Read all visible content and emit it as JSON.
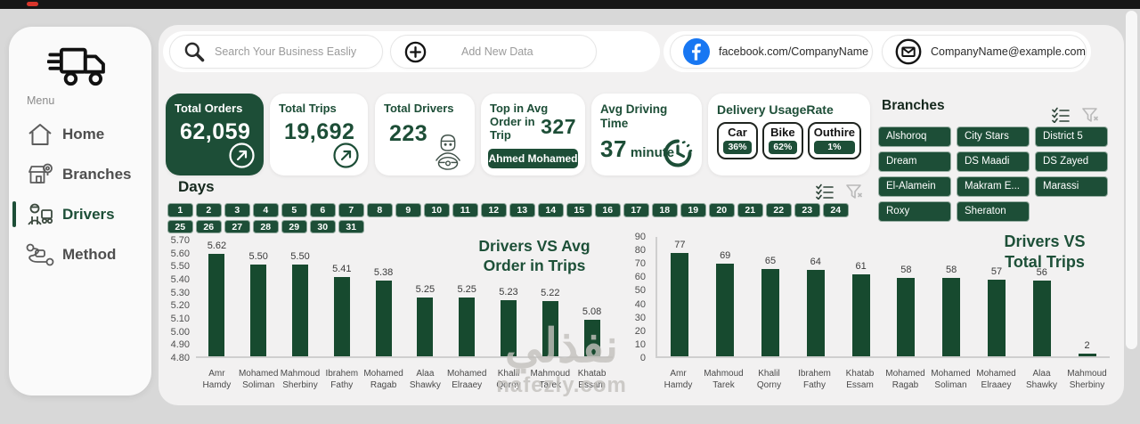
{
  "colors": {
    "accent": "#1d4e37",
    "bar_green": "#174a2f",
    "facebook_blue": "#1877F2",
    "background": "#d8d8d8"
  },
  "sidebar": {
    "menu_label": "Menu",
    "items": [
      {
        "label": "Home",
        "active": false
      },
      {
        "label": "Branches",
        "active": false
      },
      {
        "label": "Drivers",
        "active": true
      },
      {
        "label": "Method",
        "active": false
      }
    ]
  },
  "topbar": {
    "search_placeholder": "Search Your Business Easliy",
    "add_new_label": "Add New Data",
    "facebook_text": "facebook.com/CompanyName",
    "email_text": "CompanyName@example.com"
  },
  "kpis": {
    "total_orders": {
      "label": "Total Orders",
      "value": "62,059"
    },
    "total_trips": {
      "label": "Total Trips",
      "value": "19,692"
    },
    "total_drivers": {
      "label": "Total Drivers",
      "value": "223"
    },
    "top_avg_order": {
      "label": "Top in Avg Order in Trip",
      "value": "327",
      "badge": "Ahmed Mohamed"
    },
    "avg_driving_time": {
      "label": "Avg Driving Time",
      "value": "37",
      "unit": "minute"
    },
    "delivery_usage": {
      "label": "Delivery UsageRate",
      "items": [
        {
          "name": "Car",
          "pct": "36%"
        },
        {
          "name": "Bike",
          "pct": "62%"
        },
        {
          "name": "Outhire",
          "pct": "1%"
        }
      ]
    }
  },
  "branches": {
    "title": "Branches",
    "items": [
      "Alshoroq",
      "City Stars",
      "District 5",
      "Dream",
      "DS Maadi",
      "DS Zayed",
      "El-Alamein",
      "Makram E...",
      "Marassi",
      "Roxy",
      "Sheraton"
    ]
  },
  "days": {
    "title": "Days",
    "values": [
      "1",
      "2",
      "3",
      "4",
      "5",
      "6",
      "7",
      "8",
      "9",
      "10",
      "11",
      "12",
      "13",
      "14",
      "15",
      "16",
      "17",
      "18",
      "19",
      "20",
      "21",
      "22",
      "23",
      "24",
      "25",
      "26",
      "27",
      "28",
      "29",
      "30",
      "31"
    ]
  },
  "chart_data": [
    {
      "type": "bar",
      "title": "Drivers VS Avg Order in Trips",
      "title_lines": [
        "Drivers VS Avg",
        "Order in Trips"
      ],
      "categories": [
        "Amr Hamdy",
        "Mohamed Soliman",
        "Mahmoud Sherbiny",
        "Ibrahem Fathy",
        "Mohamed Ragab",
        "Alaa Shawky",
        "Mohamed Elraaey",
        "Khalil Qorny",
        "Mahmoud Tarek",
        "Khatab Essam"
      ],
      "values": [
        5.62,
        5.5,
        5.5,
        5.41,
        5.38,
        5.25,
        5.25,
        5.23,
        5.22,
        5.08
      ],
      "value_labels": [
        "5.62",
        "5.50",
        "5.50",
        "5.41",
        "5.38",
        "5.25",
        "5.25",
        "5.23",
        "5.22",
        "5.08"
      ],
      "xlabel": "",
      "ylabel": "",
      "ylim": [
        4.8,
        5.7
      ],
      "yticks": [
        "5.70",
        "5.60",
        "5.50",
        "5.40",
        "5.30",
        "5.20",
        "5.10",
        "5.00",
        "4.90",
        "4.80"
      ],
      "grid": false,
      "legend": "none"
    },
    {
      "type": "bar",
      "title": "Drivers VS Total Trips",
      "title_lines": [
        "Drivers VS",
        "Total Trips"
      ],
      "categories": [
        "Amr Hamdy",
        "Mahmoud Tarek",
        "Khalil Qorny",
        "Ibrahem Fathy",
        "Khatab Essam",
        "Mohamed Ragab",
        "Mohamed Soliman",
        "Mohamed Elraaey",
        "Alaa Shawky",
        "Mahmoud Sherbiny"
      ],
      "values": [
        77,
        69,
        65,
        64,
        61,
        58,
        58,
        57,
        56,
        2
      ],
      "value_labels": [
        "77",
        "69",
        "65",
        "64",
        "61",
        "58",
        "58",
        "57",
        "56",
        "2"
      ],
      "xlabel": "",
      "ylabel": "",
      "ylim": [
        0,
        90
      ],
      "yticks": [
        "90",
        "80",
        "70",
        "60",
        "50",
        "40",
        "30",
        "20",
        "10",
        "0"
      ],
      "grid": false,
      "legend": "none"
    }
  ],
  "watermark": {
    "text_ar": "نفذلي",
    "text_latin": "nafezly.com"
  }
}
